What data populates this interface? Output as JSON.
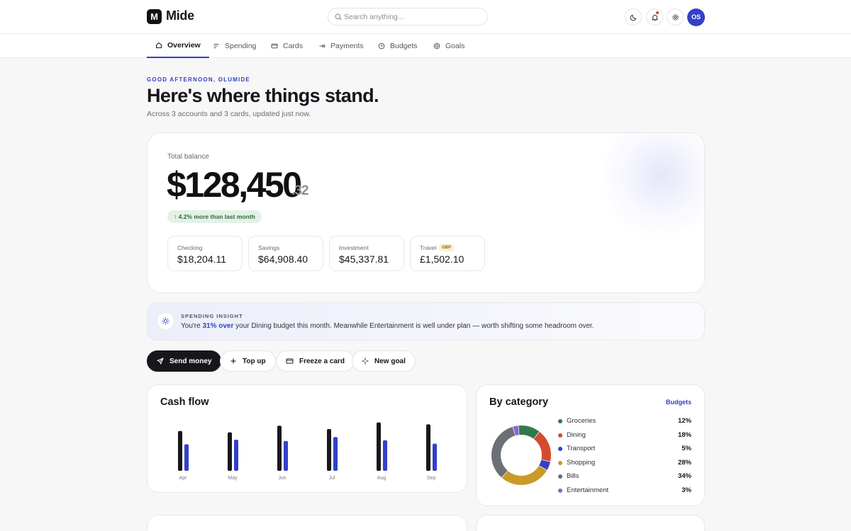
{
  "brand": {
    "mark": "M",
    "name": "Mide"
  },
  "search": {
    "placeholder": "Search anything..."
  },
  "user": {
    "initials": "OS"
  },
  "tabs": [
    {
      "label": "Overview",
      "icon": "home-icon",
      "active": true
    },
    {
      "label": "Spending",
      "icon": "list-icon",
      "active": false
    },
    {
      "label": "Cards",
      "icon": "card-icon",
      "active": false
    },
    {
      "label": "Payments",
      "icon": "arrow-right-icon",
      "active": false
    },
    {
      "label": "Budgets",
      "icon": "clock-icon",
      "active": false
    },
    {
      "label": "Goals",
      "icon": "target-icon",
      "active": false
    }
  ],
  "greeting": {
    "eyebrow": "GOOD AFTERNOON, OLUMIDE",
    "title": "Here's where things stand.",
    "subtitle": "Across 3 accounts and 3 cards, updated just now."
  },
  "balance": {
    "label": "Total balance",
    "amount": "$128,450",
    "cents": ".32",
    "change": "↑ 4.2% more than last month"
  },
  "accounts": [
    {
      "label": "Checking",
      "value": "$18,204.11",
      "tag": ""
    },
    {
      "label": "Savings",
      "value": "$64,908.40",
      "tag": ""
    },
    {
      "label": "Investment",
      "value": "$45,337.81",
      "tag": ""
    },
    {
      "label": "Travel",
      "value": "£1,502.10",
      "tag": "GBP"
    }
  ],
  "insight": {
    "eyebrow": "SPENDING INSIGHT",
    "before": "You're ",
    "highlight": "31% over",
    "after": " your Dining budget this month. Meanwhile Entertainment is well under plan — worth shifting some headroom over."
  },
  "actions": {
    "send": "Send money",
    "topup": "Top up",
    "freeze": "Freeze a card",
    "goal": "New goal"
  },
  "cashflow": {
    "title": "Cash flow"
  },
  "category": {
    "title": "By category",
    "link": "Budgets"
  },
  "colors": {
    "accent": "#3340c9",
    "income_bar": "#17171b",
    "spend_bar": "#3340c9",
    "positive_badge": "#e3f1e7"
  },
  "chart_data": [
    {
      "type": "bar",
      "categories": [
        "Apr",
        "May",
        "Jun",
        "Jul",
        "Aug",
        "Sep"
      ],
      "series": [
        {
          "values": [
            60,
            58,
            68,
            63,
            73,
            70
          ],
          "color": "#17171b"
        },
        {
          "values": [
            40,
            47,
            45,
            51,
            46,
            41
          ],
          "color": "#3340c9"
        }
      ],
      "title": "Cash flow",
      "ylim": [
        0,
        80
      ],
      "grid": false
    },
    {
      "type": "pie",
      "title": "By category",
      "donut": true,
      "categories": [
        "Groceries",
        "Dining",
        "Transport",
        "Shopping",
        "Bills",
        "Entertainment"
      ],
      "values": [
        12,
        18,
        5,
        28,
        34,
        3
      ],
      "labels": [
        "12%",
        "18%",
        "5%",
        "28%",
        "34%",
        "3%"
      ],
      "colors": [
        "#2f7a4c",
        "#d24b2c",
        "#3340c9",
        "#c99a28",
        "#6b6f76",
        "#8a63d2"
      ],
      "legend": "right"
    }
  ]
}
